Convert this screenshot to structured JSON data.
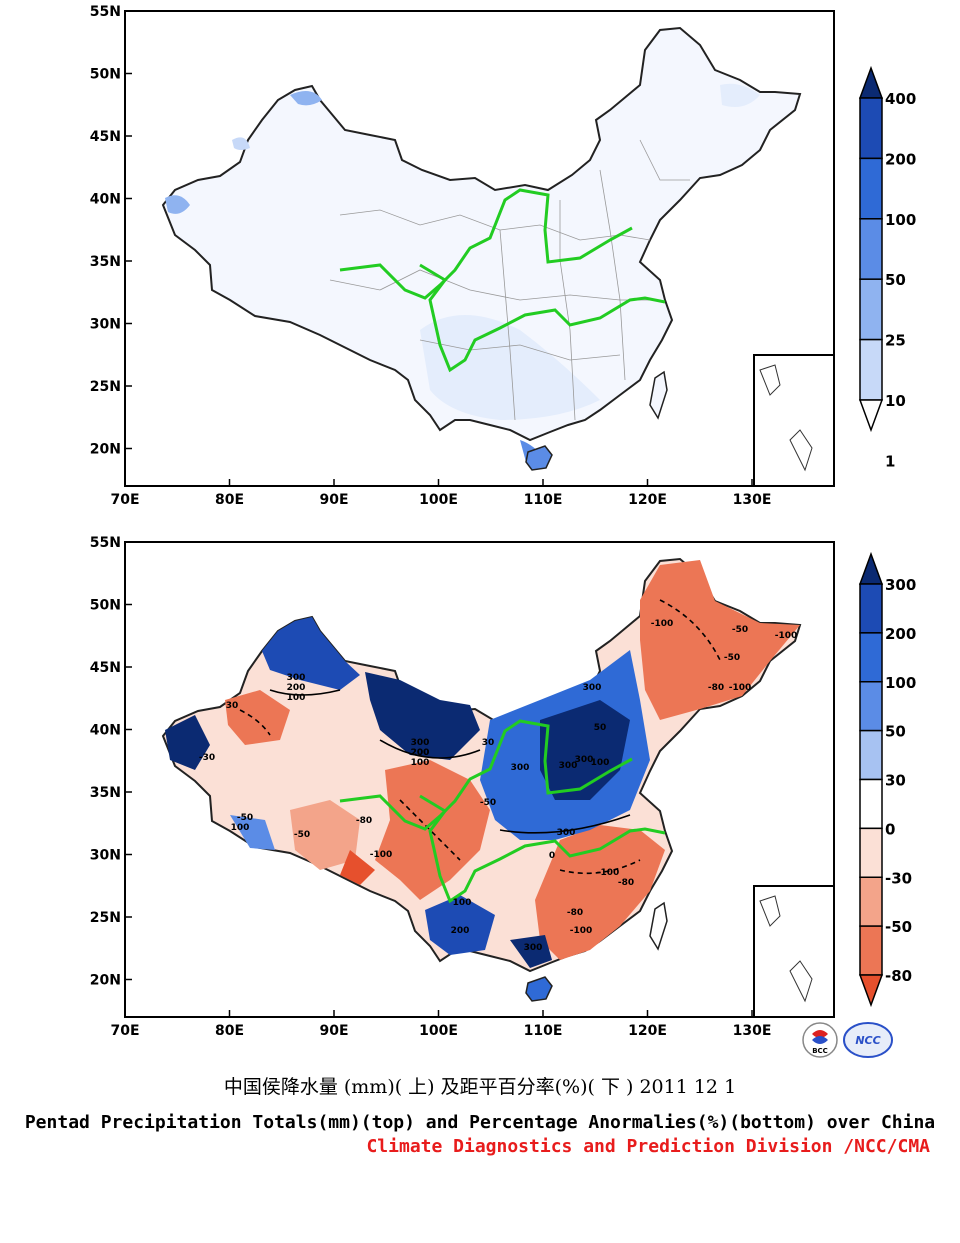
{
  "maps": {
    "lon_labels": [
      "70E",
      "80E",
      "90E",
      "100E",
      "110E",
      "120E",
      "130E"
    ],
    "lat_labels": [
      "55N",
      "50N",
      "45N",
      "40N",
      "35N",
      "30N",
      "25N",
      "20N"
    ],
    "top": {
      "colorbar": {
        "labels": [
          "400",
          "200",
          "100",
          "50",
          "25",
          "10",
          "1"
        ],
        "colors": [
          "#0b2a72",
          "#1d4bb4",
          "#2f6ad6",
          "#5b8ce6",
          "#8fb3f0",
          "#c7d9f8",
          "#ffffff"
        ]
      }
    },
    "bottom": {
      "colorbar": {
        "labels": [
          "300",
          "200",
          "100",
          "50",
          "30",
          "0",
          "-30",
          "-50",
          "-80"
        ],
        "colors": [
          "#0b2a72",
          "#1d4bb4",
          "#2f6ad6",
          "#5b8ce6",
          "#a7c2f2",
          "#ffffff",
          "#fbe0d6",
          "#f3a48a",
          "#ec7655",
          "#e6502d"
        ]
      },
      "contour_labels": [
        "300",
        "200",
        "100",
        "50",
        "30",
        "0",
        "-30",
        "-50",
        "-80",
        "-100"
      ]
    }
  },
  "logos": {
    "bcc": "BCC",
    "ncc": "NCC"
  },
  "captions": {
    "chinese": "中国侯降水量 (mm)( 上) 及距平百分率(%)( 下 ) 2011 12 1",
    "english": "Pentad Precipitation Totals(mm)(top) and Percentage Anormalies(%)(bottom) over China",
    "credit": "Climate Diagnostics and Prediction Division /NCC/CMA"
  }
}
